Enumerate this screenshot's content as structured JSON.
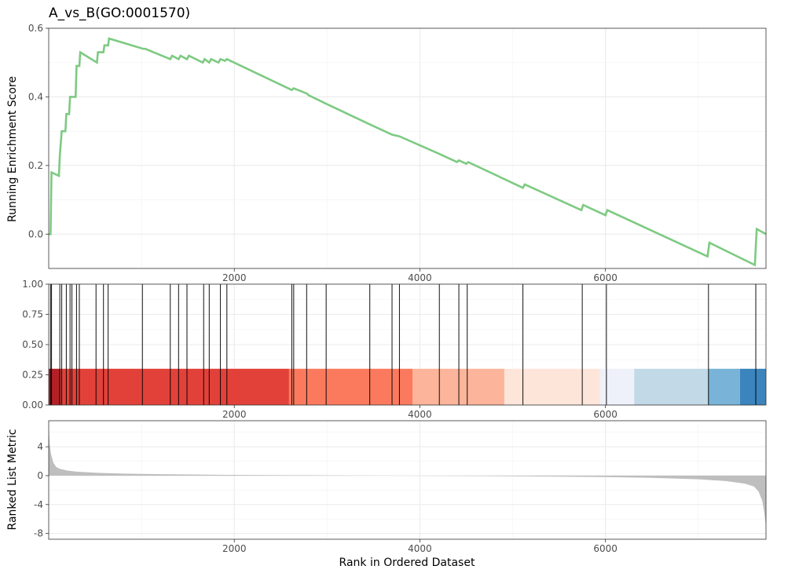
{
  "chart_data": {
    "type": "line",
    "title": "A_vs_B(GO:0001570)",
    "xlabel": "Rank in Ordered Dataset",
    "xlim": [
      0,
      7730
    ],
    "x_ticks": [
      2000,
      4000,
      6000
    ],
    "x_tick_labels": [
      "2000",
      "4000",
      "6000"
    ],
    "grid": true,
    "panels": [
      {
        "name": "running-es",
        "ylabel": "Running Enrichment Score",
        "ylim": [
          -0.1,
          0.6
        ],
        "y_ticks": [
          0.0,
          0.2,
          0.4,
          0.6
        ],
        "y_tick_labels": [
          "0.0",
          "0.2",
          "0.4",
          "0.6"
        ],
        "line_color": "#7DCA82",
        "points": [
          [
            0,
            0
          ],
          [
            20,
            0
          ],
          [
            30,
            0.18
          ],
          [
            110,
            0.17
          ],
          [
            120,
            0.23
          ],
          [
            140,
            0.3
          ],
          [
            180,
            0.3
          ],
          [
            190,
            0.35
          ],
          [
            220,
            0.35
          ],
          [
            230,
            0.4
          ],
          [
            290,
            0.4
          ],
          [
            300,
            0.49
          ],
          [
            330,
            0.49
          ],
          [
            340,
            0.53
          ],
          [
            520,
            0.5
          ],
          [
            530,
            0.53
          ],
          [
            590,
            0.53
          ],
          [
            600,
            0.55
          ],
          [
            640,
            0.55
          ],
          [
            650,
            0.57
          ],
          [
            1020,
            0.54
          ],
          [
            1040,
            0.54
          ],
          [
            1310,
            0.51
          ],
          [
            1330,
            0.52
          ],
          [
            1400,
            0.51
          ],
          [
            1420,
            0.52
          ],
          [
            1490,
            0.51
          ],
          [
            1510,
            0.52
          ],
          [
            1660,
            0.5
          ],
          [
            1680,
            0.51
          ],
          [
            1730,
            0.5
          ],
          [
            1750,
            0.51
          ],
          [
            1830,
            0.5
          ],
          [
            1850,
            0.51
          ],
          [
            1900,
            0.505
          ],
          [
            1920,
            0.51
          ],
          [
            2620,
            0.42
          ],
          [
            2640,
            0.425
          ],
          [
            2780,
            0.41
          ],
          [
            2800,
            0.405
          ],
          [
            2990,
            0.38
          ],
          [
            3460,
            0.32
          ],
          [
            3700,
            0.29
          ],
          [
            3780,
            0.285
          ],
          [
            4200,
            0.235
          ],
          [
            4400,
            0.21
          ],
          [
            4420,
            0.215
          ],
          [
            4500,
            0.205
          ],
          [
            4520,
            0.21
          ],
          [
            5110,
            0.135
          ],
          [
            5130,
            0.145
          ],
          [
            5740,
            0.07
          ],
          [
            5760,
            0.085
          ],
          [
            6000,
            0.055
          ],
          [
            6020,
            0.07
          ],
          [
            7100,
            -0.065
          ],
          [
            7120,
            -0.025
          ],
          [
            7610,
            -0.09
          ],
          [
            7630,
            0.015
          ],
          [
            7730,
            0.0
          ]
        ]
      },
      {
        "name": "gene-hits",
        "ylim": [
          0,
          1
        ],
        "y_ticks": [
          0.0,
          0.25,
          0.5,
          0.75,
          1.0
        ],
        "y_tick_labels": [
          "0.00",
          "0.25",
          "0.50",
          "0.75",
          "1.00"
        ],
        "hit_positions": [
          20,
          30,
          120,
          140,
          190,
          230,
          250,
          300,
          330,
          510,
          590,
          640,
          1010,
          1310,
          1400,
          1490,
          1670,
          1730,
          1850,
          1920,
          2620,
          2640,
          2780,
          2990,
          3460,
          3700,
          3780,
          4210,
          4420,
          4510,
          5110,
          5750,
          6010,
          7110,
          7620
        ],
        "hit_line_top": 1.0,
        "color_bands": [
          {
            "start": 0,
            "end": 130,
            "color": "#B52027"
          },
          {
            "start": 130,
            "end": 2590,
            "color": "#E2413A"
          },
          {
            "start": 2590,
            "end": 3920,
            "color": "#FB7A5E"
          },
          {
            "start": 3920,
            "end": 4910,
            "color": "#FCB49A"
          },
          {
            "start": 4910,
            "end": 5940,
            "color": "#FDE5DA"
          },
          {
            "start": 5940,
            "end": 6310,
            "color": "#EEF1FA"
          },
          {
            "start": 6310,
            "end": 7110,
            "color": "#C2D9E7"
          },
          {
            "start": 7110,
            "end": 7450,
            "color": "#79B4D8"
          },
          {
            "start": 7450,
            "end": 7730,
            "color": "#3B84BD"
          }
        ],
        "band_height": 0.3
      },
      {
        "name": "ranked-metric",
        "ylabel": "Ranked List Metric",
        "ylim": [
          -8.8,
          7.6
        ],
        "y_ticks": [
          -8,
          -4,
          0,
          4
        ],
        "y_tick_labels": [
          "-8",
          "-4",
          "0",
          "4"
        ],
        "fill_color": "#BEBEBE",
        "profile": [
          [
            0,
            6.8
          ],
          [
            10,
            4.5
          ],
          [
            25,
            3.0
          ],
          [
            50,
            1.8
          ],
          [
            80,
            1.2
          ],
          [
            120,
            0.95
          ],
          [
            200,
            0.7
          ],
          [
            300,
            0.55
          ],
          [
            500,
            0.4
          ],
          [
            800,
            0.28
          ],
          [
            1200,
            0.2
          ],
          [
            1800,
            0.12
          ],
          [
            2500,
            0.07
          ],
          [
            3200,
            0.03
          ],
          [
            3800,
            0.0
          ],
          [
            4500,
            -0.04
          ],
          [
            5200,
            -0.1
          ],
          [
            5900,
            -0.18
          ],
          [
            6500,
            -0.3
          ],
          [
            7000,
            -0.5
          ],
          [
            7300,
            -0.75
          ],
          [
            7500,
            -1.1
          ],
          [
            7600,
            -1.5
          ],
          [
            7650,
            -2.2
          ],
          [
            7690,
            -3.5
          ],
          [
            7710,
            -5.0
          ],
          [
            7730,
            -7.0
          ]
        ]
      }
    ]
  }
}
